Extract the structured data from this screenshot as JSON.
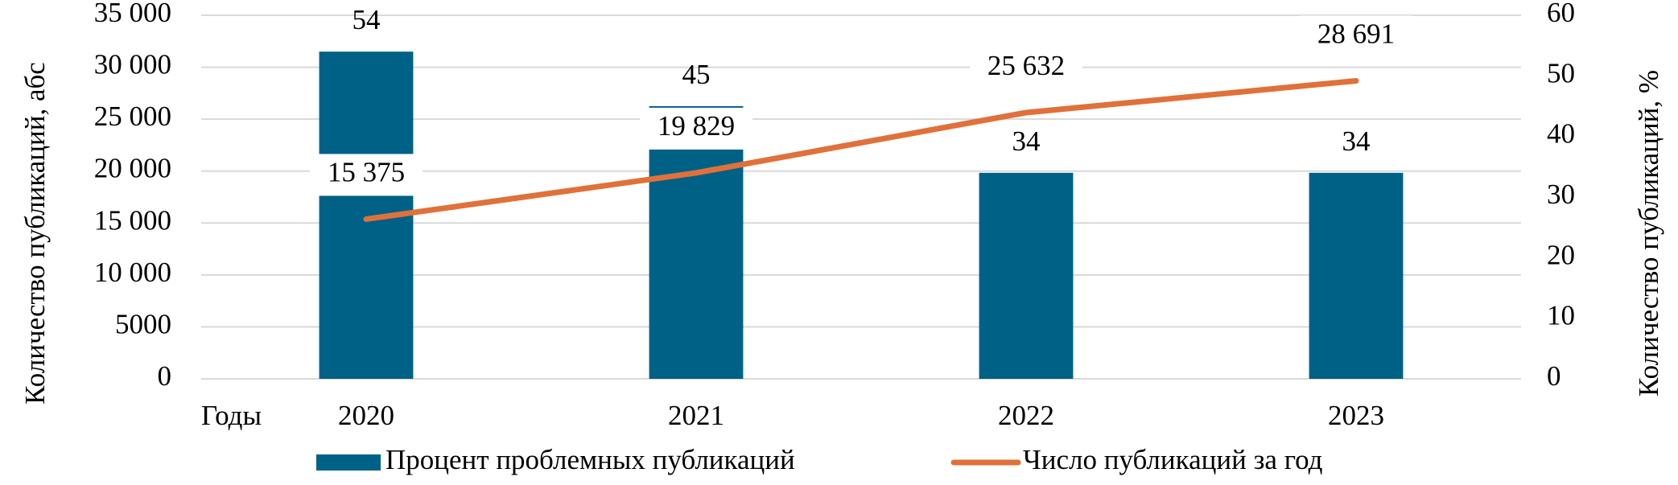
{
  "chart_data": {
    "type": "combo",
    "categories": [
      "2020",
      "2021",
      "2022",
      "2023"
    ],
    "x_label": "Годы",
    "y_label": "Количество публикаций, абс",
    "y2_label": "Количество публикаций, %",
    "series": [
      {
        "name": "Процент проблемных публикаций",
        "color": "#006186",
        "type": "bar",
        "axis": "y2",
        "values": [
          54,
          45,
          34,
          34
        ]
      },
      {
        "name": "Число публикаций за год",
        "color": "#e0713a",
        "type": "line",
        "values": [
          15375,
          19829,
          25632,
          28691
        ],
        "value_labels": [
          "15 375",
          "19 829",
          "25 632",
          "28 691"
        ]
      }
    ],
    "ylim": [
      0,
      35000
    ],
    "yticks": [
      0,
      5000,
      {
        "value": 10000,
        "label": "10 000"
      },
      {
        "value": 15000,
        "label": "15 000"
      },
      {
        "value": 20000,
        "label": "20 000"
      },
      {
        "value": 25000,
        "label": "25 000"
      },
      {
        "value": 30000,
        "label": "30 000"
      },
      {
        "value": 35000,
        "label": "35 000"
      }
    ],
    "y2lim": [
      0,
      60
    ],
    "y2ticks": [
      0,
      10,
      20,
      30,
      40,
      50,
      60
    ],
    "grid": true,
    "legend": "bottom"
  }
}
